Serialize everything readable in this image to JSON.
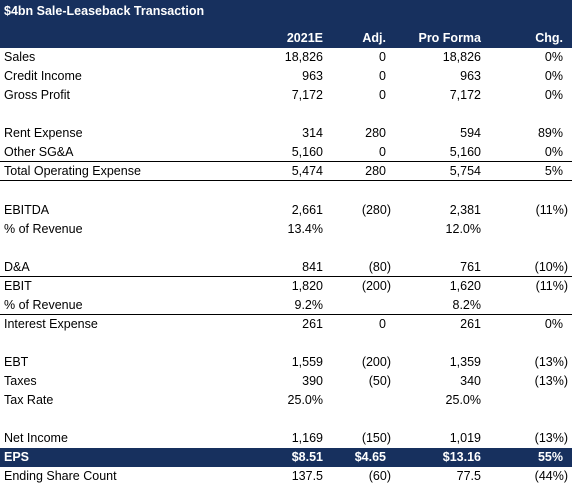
{
  "title": "$4bn Sale-Leaseback Transaction",
  "columns": [
    "2021E",
    "Adj.",
    "Pro Forma",
    "Chg."
  ],
  "rows": [
    {
      "label": "Sales",
      "v": [
        "18,826",
        "0",
        "18,826",
        "0%"
      ]
    },
    {
      "label": "Credit Income",
      "v": [
        "963",
        "0",
        "963",
        "0%"
      ]
    },
    {
      "label": "Gross Profit",
      "v": [
        "7,172",
        "0",
        "7,172",
        "0%"
      ]
    },
    {
      "label": "Rent Expense",
      "v": [
        "314",
        "280",
        "594",
        "89%"
      ]
    },
    {
      "label": "Other SG&A",
      "v": [
        "5,160",
        "0",
        "5,160",
        "0%"
      ]
    },
    {
      "label": "Total Operating Expense",
      "v": [
        "5,474",
        "280",
        "5,754",
        "5%"
      ]
    },
    {
      "label": "EBITDA",
      "v": [
        "2,661",
        "(280)",
        "2,381",
        "(11%)"
      ]
    },
    {
      "label": "% of Revenue",
      "v": [
        "13.4%",
        "",
        "12.0%",
        ""
      ]
    },
    {
      "label": "D&A",
      "v": [
        "841",
        "(80)",
        "761",
        "(10%)"
      ]
    },
    {
      "label": "EBIT",
      "v": [
        "1,820",
        "(200)",
        "1,620",
        "(11%)"
      ]
    },
    {
      "label": "% of Revenue",
      "v": [
        "9.2%",
        "",
        "8.2%",
        ""
      ]
    },
    {
      "label": "Interest Expense",
      "v": [
        "261",
        "0",
        "261",
        "0%"
      ]
    },
    {
      "label": "EBT",
      "v": [
        "1,559",
        "(200)",
        "1,359",
        "(13%)"
      ]
    },
    {
      "label": "Taxes",
      "v": [
        "390",
        "(50)",
        "340",
        "(13%)"
      ]
    },
    {
      "label": "Tax Rate",
      "v": [
        "25.0%",
        "",
        "25.0%",
        ""
      ]
    },
    {
      "label": "Net Income",
      "v": [
        "1,169",
        "(150)",
        "1,019",
        "(13%)"
      ]
    },
    {
      "label": "EPS",
      "v": [
        "$8.51",
        "$4.65",
        "$13.16",
        "55%"
      ]
    },
    {
      "label": "Ending Share Count",
      "v": [
        "137.5",
        "(60)",
        "77.5",
        "(44%)"
      ]
    }
  ],
  "colors": {
    "header_bg": "#17305e",
    "header_text": "#ffffff"
  }
}
